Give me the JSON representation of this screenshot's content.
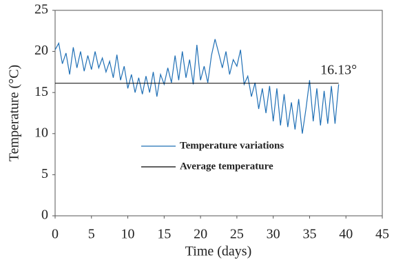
{
  "chart_data": {
    "type": "line",
    "x_label": "Time (days)",
    "y_label": "Temperature (°C)",
    "xlim": [
      0,
      45
    ],
    "xticks": [
      0,
      5,
      10,
      15,
      20,
      25,
      30,
      35,
      40,
      45
    ],
    "ylim": [
      0,
      25
    ],
    "yticks": [
      0,
      5,
      10,
      15,
      20,
      25
    ],
    "grid": false,
    "legend": "center",
    "series": [
      {
        "name": "Temperature variations",
        "color": "#1f6fb5",
        "x": [
          0,
          0.5,
          1,
          1.5,
          2,
          2.5,
          3,
          3.5,
          4,
          4.5,
          5,
          5.5,
          6,
          6.5,
          7,
          7.5,
          8,
          8.5,
          9,
          9.5,
          10,
          10.5,
          11,
          11.5,
          12,
          12.5,
          13,
          13.5,
          14,
          14.5,
          15,
          15.5,
          16,
          16.5,
          17,
          17.5,
          18,
          18.5,
          19,
          19.5,
          20,
          20.5,
          21,
          21.5,
          22,
          22.5,
          23,
          23.5,
          24,
          24.5,
          25,
          25.5,
          26,
          26.5,
          27,
          27.5,
          28,
          28.5,
          29,
          29.5,
          30,
          30.5,
          31,
          31.5,
          32,
          32.5,
          33,
          33.5,
          34,
          34.5,
          35,
          35.5,
          36,
          36.5,
          37,
          37.5,
          38,
          38.5,
          39
        ],
        "values": [
          20.2,
          21.0,
          18.5,
          19.8,
          17.2,
          20.5,
          18.0,
          20.0,
          17.6,
          19.5,
          17.8,
          20.0,
          18.0,
          19.2,
          17.5,
          18.8,
          16.8,
          19.6,
          16.5,
          18.2,
          15.5,
          17.2,
          15.0,
          16.8,
          14.8,
          17.0,
          15.0,
          17.5,
          14.5,
          17.2,
          16.0,
          18.0,
          16.2,
          19.5,
          16.5,
          20.0,
          16.8,
          19.0,
          16.0,
          20.8,
          16.5,
          18.2,
          16.2,
          19.5,
          21.5,
          19.8,
          18.0,
          20.0,
          17.2,
          19.0,
          18.2,
          20.2,
          16.0,
          17.0,
          14.5,
          16.2,
          13.0,
          15.5,
          12.5,
          15.8,
          11.5,
          15.5,
          11.0,
          14.8,
          10.8,
          13.8,
          10.5,
          14.2,
          10.0,
          13.0,
          16.5,
          11.5,
          15.5,
          11.0,
          15.2,
          11.2,
          15.8,
          11.2,
          16.0
        ]
      },
      {
        "name": "Average temperature",
        "color": "#000000",
        "x": [
          0,
          39
        ],
        "values": [
          16.13,
          16.13
        ],
        "value_labels": [
          null,
          "16.13°"
        ]
      }
    ]
  }
}
